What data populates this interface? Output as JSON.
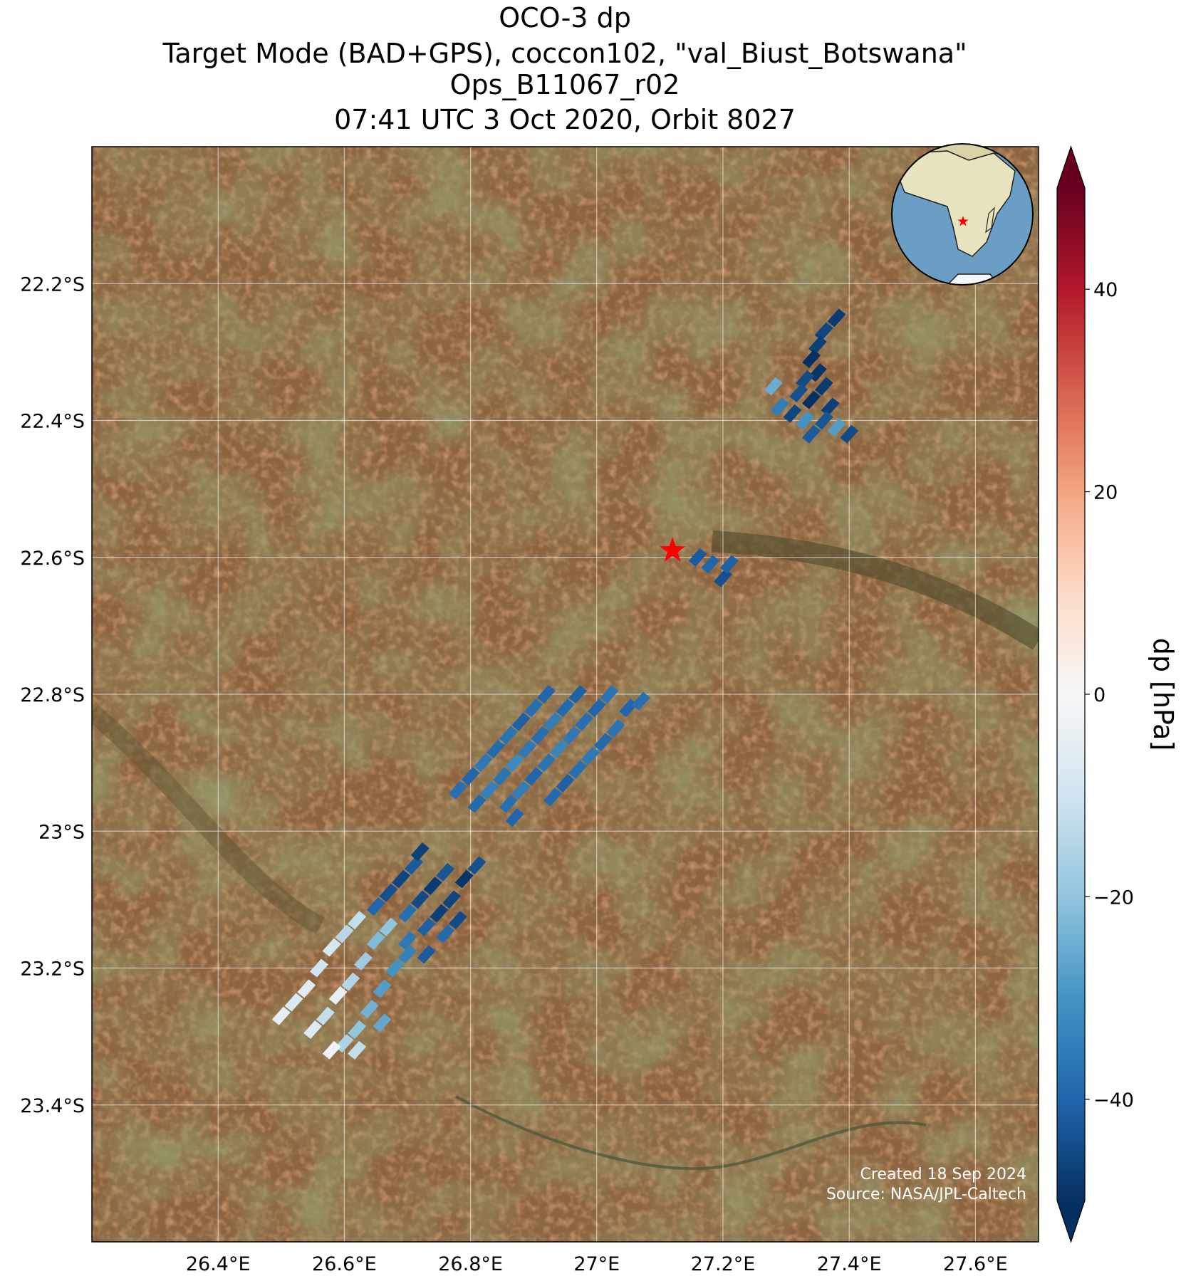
{
  "chart_data": {
    "type": "map",
    "title": [
      "OCO-3 dp",
      "Target Mode (BAD+GPS), coccon102, \"val_Biust_Botswana\"",
      "Ops_B11067_r02",
      "07:41 UTC 3 Oct 2020, Orbit 8027"
    ],
    "xlim": [
      26.2,
      27.7
    ],
    "ylim": [
      -23.6,
      -22.0
    ],
    "xticks": [
      {
        "value": 26.4,
        "label": "26.4°E"
      },
      {
        "value": 26.6,
        "label": "26.6°E"
      },
      {
        "value": 26.8,
        "label": "26.8°E"
      },
      {
        "value": 27.0,
        "label": "27°E"
      },
      {
        "value": 27.2,
        "label": "27.2°E"
      },
      {
        "value": 27.4,
        "label": "27.4°E"
      },
      {
        "value": 27.6,
        "label": "27.6°E"
      }
    ],
    "yticks": [
      {
        "value": -22.2,
        "label": "22.2°S"
      },
      {
        "value": -22.4,
        "label": "22.4°S"
      },
      {
        "value": -22.6,
        "label": "22.6°S"
      },
      {
        "value": -22.8,
        "label": "22.8°S"
      },
      {
        "value": -23.0,
        "label": "23°S"
      },
      {
        "value": -23.2,
        "label": "23.2°S"
      },
      {
        "value": -23.4,
        "label": "23.4°S"
      }
    ],
    "grid": true,
    "colorbar": {
      "label": "dp [hPa]",
      "clim": [
        -50,
        50
      ],
      "colormap": [
        "#053061",
        "#2166ac",
        "#4393c3",
        "#92c5de",
        "#d1e5f0",
        "#f7f7f7",
        "#fddbc7",
        "#f4a582",
        "#d6604d",
        "#b2182b",
        "#67001f"
      ],
      "ticks": [
        {
          "value": -40,
          "label": "−40"
        },
        {
          "value": -20,
          "label": "−20"
        },
        0,
        20,
        40
      ]
    },
    "site": {
      "lon": 27.12,
      "lat": -22.59,
      "color": "#ff0000"
    },
    "soundings": {
      "lon": [
        27.38,
        27.36,
        27.35,
        27.34,
        27.35,
        27.33,
        27.36,
        27.32,
        27.34,
        27.37,
        27.31,
        27.33,
        27.36,
        27.38,
        27.29,
        27.34,
        27.4,
        27.28,
        27.16,
        27.18,
        27.2,
        27.21,
        26.78,
        26.8,
        26.82,
        26.84,
        26.86,
        26.88,
        26.9,
        26.92,
        26.81,
        26.83,
        26.85,
        26.87,
        26.89,
        26.91,
        26.93,
        26.95,
        26.97,
        26.86,
        26.88,
        26.9,
        26.92,
        26.94,
        26.96,
        26.98,
        27.0,
        27.02,
        26.87,
        26.93,
        26.95,
        26.97,
        26.99,
        27.01,
        27.03,
        27.05,
        27.07,
        26.65,
        26.67,
        26.69,
        26.71,
        26.72,
        26.7,
        26.72,
        26.74,
        26.76,
        26.73,
        26.75,
        26.77,
        26.79,
        26.81,
        26.7,
        26.73,
        26.76,
        26.78,
        26.5,
        26.52,
        26.54,
        26.56,
        26.58,
        26.6,
        26.62,
        26.55,
        26.57,
        26.59,
        26.61,
        26.63,
        26.65,
        26.67,
        26.6,
        26.62,
        26.64,
        26.66,
        26.68,
        26.7,
        26.58,
        26.62,
        26.66
      ],
      "lat": [
        -22.25,
        -22.27,
        -22.29,
        -22.31,
        -22.33,
        -22.34,
        -22.35,
        -22.36,
        -22.37,
        -22.38,
        -22.39,
        -22.4,
        -22.4,
        -22.41,
        -22.38,
        -22.42,
        -22.42,
        -22.35,
        -22.6,
        -22.61,
        -22.63,
        -22.61,
        -22.94,
        -22.92,
        -22.9,
        -22.88,
        -22.86,
        -22.84,
        -22.82,
        -22.8,
        -22.96,
        -22.94,
        -22.92,
        -22.9,
        -22.88,
        -22.86,
        -22.84,
        -22.82,
        -22.8,
        -22.96,
        -22.94,
        -22.92,
        -22.9,
        -22.88,
        -22.86,
        -22.84,
        -22.82,
        -22.8,
        -22.98,
        -22.95,
        -22.93,
        -22.91,
        -22.89,
        -22.87,
        -22.85,
        -22.82,
        -22.81,
        -23.11,
        -23.09,
        -23.07,
        -23.05,
        -23.03,
        -23.12,
        -23.1,
        -23.08,
        -23.06,
        -23.14,
        -23.12,
        -23.1,
        -23.07,
        -23.05,
        -23.16,
        -23.18,
        -23.15,
        -23.13,
        -23.27,
        -23.25,
        -23.23,
        -23.2,
        -23.17,
        -23.15,
        -23.13,
        -23.29,
        -23.27,
        -23.24,
        -23.22,
        -23.19,
        -23.16,
        -23.14,
        -23.31,
        -23.29,
        -23.26,
        -23.23,
        -23.2,
        -23.18,
        -23.32,
        -23.32,
        -23.28
      ],
      "dp": [
        -48,
        -46,
        -47,
        -50,
        -49,
        -45,
        -48,
        -44,
        -50,
        -47,
        -46,
        -30,
        -43,
        -28,
        -35,
        -42,
        -45,
        -25,
        -42,
        -40,
        -44,
        -41,
        -38,
        -40,
        -36,
        -39,
        -37,
        -41,
        -38,
        -40,
        -39,
        -34,
        -37,
        -32,
        -36,
        -38,
        -35,
        -39,
        -41,
        -38,
        -35,
        -40,
        -37,
        -33,
        -36,
        -38,
        -40,
        -37,
        -40,
        -39,
        -41,
        -38,
        -36,
        -39,
        -37,
        -40,
        -38,
        -40,
        -44,
        -46,
        -42,
        -47,
        -38,
        -45,
        -48,
        -43,
        -41,
        -47,
        -46,
        -49,
        -44,
        -36,
        -42,
        -39,
        -45,
        -5,
        -8,
        -6,
        -10,
        -9,
        -14,
        -12,
        -7,
        -12,
        -4,
        -15,
        -18,
        -22,
        -20,
        -16,
        -20,
        -24,
        -28,
        -30,
        -34,
        -3,
        -12,
        -26
      ]
    },
    "credits": [
      "Created 18 Sep 2024",
      "Source: NASA/JPL-Caltech"
    ]
  }
}
